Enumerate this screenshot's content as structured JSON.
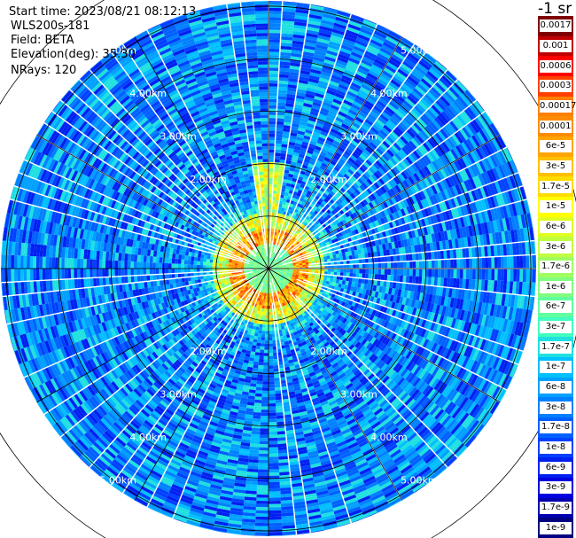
{
  "header": {
    "start_time": "Start time: 2023/08/21 08:12:13",
    "instrument": "WLS200s-181",
    "field": "Field: BETA",
    "elevation": "Elevation(deg): 35.30",
    "nrays": "NRays: 120"
  },
  "chart_data": {
    "type": "heatmap",
    "projection": "polar-ppi",
    "center_blank": "",
    "range_rings_km": [
      1,
      2,
      3,
      4,
      5,
      6
    ],
    "ring_labels": [
      "2.00km",
      "3.00km",
      "4.00km",
      "5.00km"
    ],
    "max_range_km": 5.1,
    "spoke_count": 12,
    "n_rays": 120,
    "colorbar": {
      "unit_label": "-1 sr",
      "labels": [
        "0.0017",
        "0.001",
        "0.0006",
        "0.0003",
        "0.00017",
        "0.0001",
        "6e-5",
        "3e-5",
        "1.7e-5",
        "1e-5",
        "6e-6",
        "3e-6",
        "1.7e-6",
        "1e-6",
        "6e-7",
        "3e-7",
        "1.7e-7",
        "1e-7",
        "6e-8",
        "3e-8",
        "1.7e-8",
        "1e-8",
        "6e-9",
        "3e-9",
        "1.7e-9",
        "1e-9"
      ],
      "colors": [
        "#800000",
        "#c00000",
        "#ff0000",
        "#ff4000",
        "#ff8000",
        "#ff8c00",
        "#ffa500",
        "#ffc000",
        "#ffdc00",
        "#ffff00",
        "#e0ff20",
        "#c0ff40",
        "#a0ff60",
        "#80ff80",
        "#60ffa0",
        "#40ffc0",
        "#20e0e0",
        "#00c0ff",
        "#00a0ff",
        "#0080ff",
        "#0060ff",
        "#0040ff",
        "#0020f0",
        "#0000e0",
        "#0000b0",
        "#000080"
      ]
    }
  }
}
